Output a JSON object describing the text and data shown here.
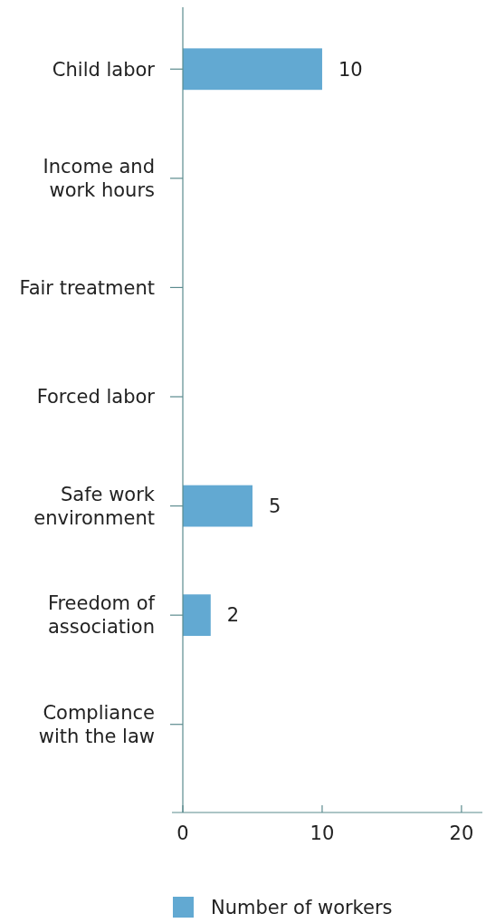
{
  "chart_data": {
    "type": "bar",
    "orientation": "horizontal",
    "categories": [
      "Child labor",
      "Income and work hours",
      "Fair treatment",
      "Forced labor",
      "Safe work environment",
      "Freedom of association",
      "Compliance with the law"
    ],
    "series": [
      {
        "name": "Number of workers",
        "color": "#62a9d2",
        "values": [
          10,
          0,
          0,
          0,
          5,
          2,
          0
        ]
      }
    ],
    "value_labels": [
      "10",
      null,
      null,
      null,
      "5",
      "2",
      null
    ],
    "xlim": [
      0,
      21.5
    ],
    "xticks": [
      0,
      10,
      20
    ],
    "legend": "bottom"
  }
}
